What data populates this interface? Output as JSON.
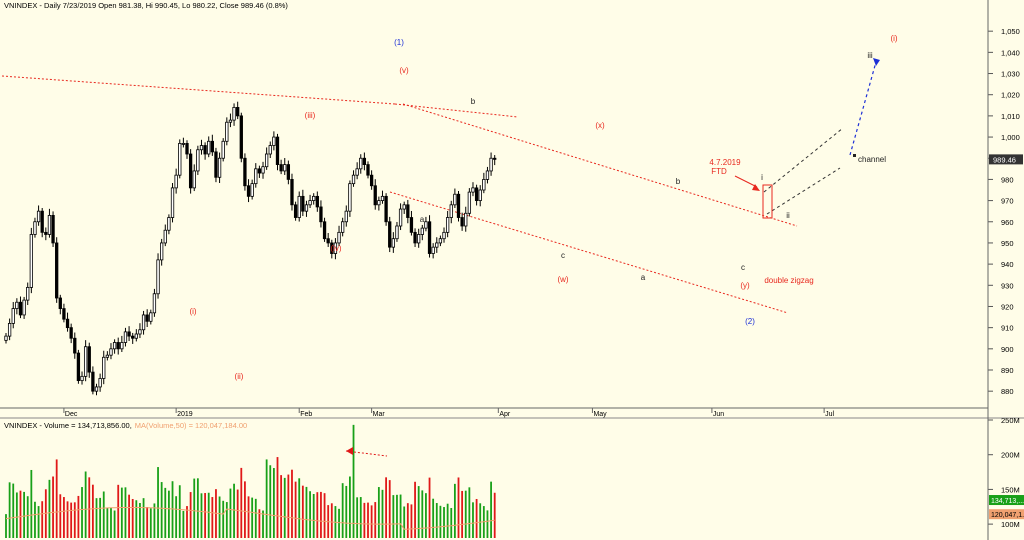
{
  "colors": {
    "background": "#fffde8",
    "bull_candle": "#ffffff",
    "bear_candle": "#000000",
    "wave_red": "#e8281e",
    "wave_blue": "#1c2fd6",
    "vol_up": "#18a018",
    "vol_down": "#e01818",
    "ma_line": "#f0a070"
  },
  "header": {
    "price_title": "VNINDEX - Daily 7/23/2019 Open 981.38, Hi 990.45, Lo 980.22, Close 989.46 (0.8%)",
    "volume_title_a": "VNINDEX - Volume = 134,713,856.00,",
    "volume_title_b": "MA(Volume,50) = 120,047,184.00"
  },
  "chart_data": [
    {
      "type": "candlestick",
      "ylim": [
        873,
        1060
      ],
      "yticks": [
        880,
        890,
        900,
        910,
        920,
        930,
        940,
        950,
        960,
        970,
        980,
        990,
        1000,
        1010,
        1020,
        1030,
        1040,
        1050
      ],
      "ytick_labels": [
        "880",
        "890",
        "900",
        "910",
        "920",
        "930",
        "940",
        "950",
        "960",
        "970",
        "980",
        "990",
        "1,000",
        "1,010",
        "1,020",
        "1,030",
        "1,040",
        "1,050"
      ],
      "last_price_label": "989.46",
      "last_price": 989.46,
      "x_months": [
        {
          "label": "Dec",
          "bar": 16
        },
        {
          "label": "2019",
          "bar": 47
        },
        {
          "label": "Feb",
          "bar": 81
        },
        {
          "label": "Mar",
          "bar": 101
        },
        {
          "label": "Apr",
          "bar": 136
        },
        {
          "label": "May",
          "bar": 162
        },
        {
          "label": "Jun",
          "bar": 195
        },
        {
          "label": "Jul",
          "bar": 226
        }
      ],
      "closes": [
        906,
        912,
        919,
        922,
        916,
        923,
        929,
        954,
        960,
        965,
        955,
        954,
        963,
        950,
        924,
        919,
        914,
        910,
        905,
        898,
        885,
        887,
        901,
        889,
        880,
        882,
        886,
        896,
        897,
        900,
        903,
        900,
        903,
        908,
        906,
        905,
        907,
        909,
        916,
        913,
        917,
        926,
        942,
        950,
        956,
        962,
        976,
        982,
        997,
        997,
        992,
        976,
        984,
        994,
        996,
        992,
        998,
        993,
        981,
        990,
        998,
        1007,
        1008,
        1014,
        1010,
        990,
        977,
        972,
        978,
        985,
        983,
        986,
        992,
        996,
        1000,
        987,
        984,
        987,
        980,
        968,
        962,
        972,
        965,
        968,
        970,
        972,
        967,
        960,
        952,
        950,
        945,
        950,
        955,
        960,
        965,
        978,
        982,
        985,
        990,
        987,
        982,
        977,
        968,
        970,
        972,
        960,
        948,
        952,
        958,
        966,
        968,
        962,
        955,
        950,
        954,
        957,
        960,
        945,
        948,
        950,
        952,
        955,
        962,
        968,
        973,
        962,
        958,
        964,
        974,
        976,
        970,
        975,
        980,
        984,
        990,
        989.46
      ],
      "volume": {
        "ylim": [
          80,
          250
        ],
        "yticks": [
          100,
          150,
          200,
          250
        ],
        "ytick_labels": [
          "100M",
          "150M",
          "200M",
          "250M"
        ],
        "last_volume_label": "134,713,...",
        "ma_label": "120,047,1...",
        "last_volume": 134.71,
        "last_ma": 120.05
      }
    }
  ],
  "annotations": {
    "w1": "(1)",
    "wv": "(v)",
    "wiii": "(iii)",
    "wiv": "(iv)",
    "wi": "(i)",
    "wii": "(ii)",
    "wb1": "b",
    "wa1": "a",
    "wx": "(x)",
    "wc1": "c",
    "ww": "(w)",
    "wb2": "b",
    "wa2": "a",
    "wc2": "c",
    "wy": "(y)",
    "w2": "(2)",
    "date_label": "4.7.2019",
    "ftd_label": "FTD",
    "i_small": "i",
    "ii_small": "ii",
    "iii_small": "iii",
    "i_paren": "(i)",
    "dz_label": "double zigzag",
    "channel_label": "channel"
  }
}
